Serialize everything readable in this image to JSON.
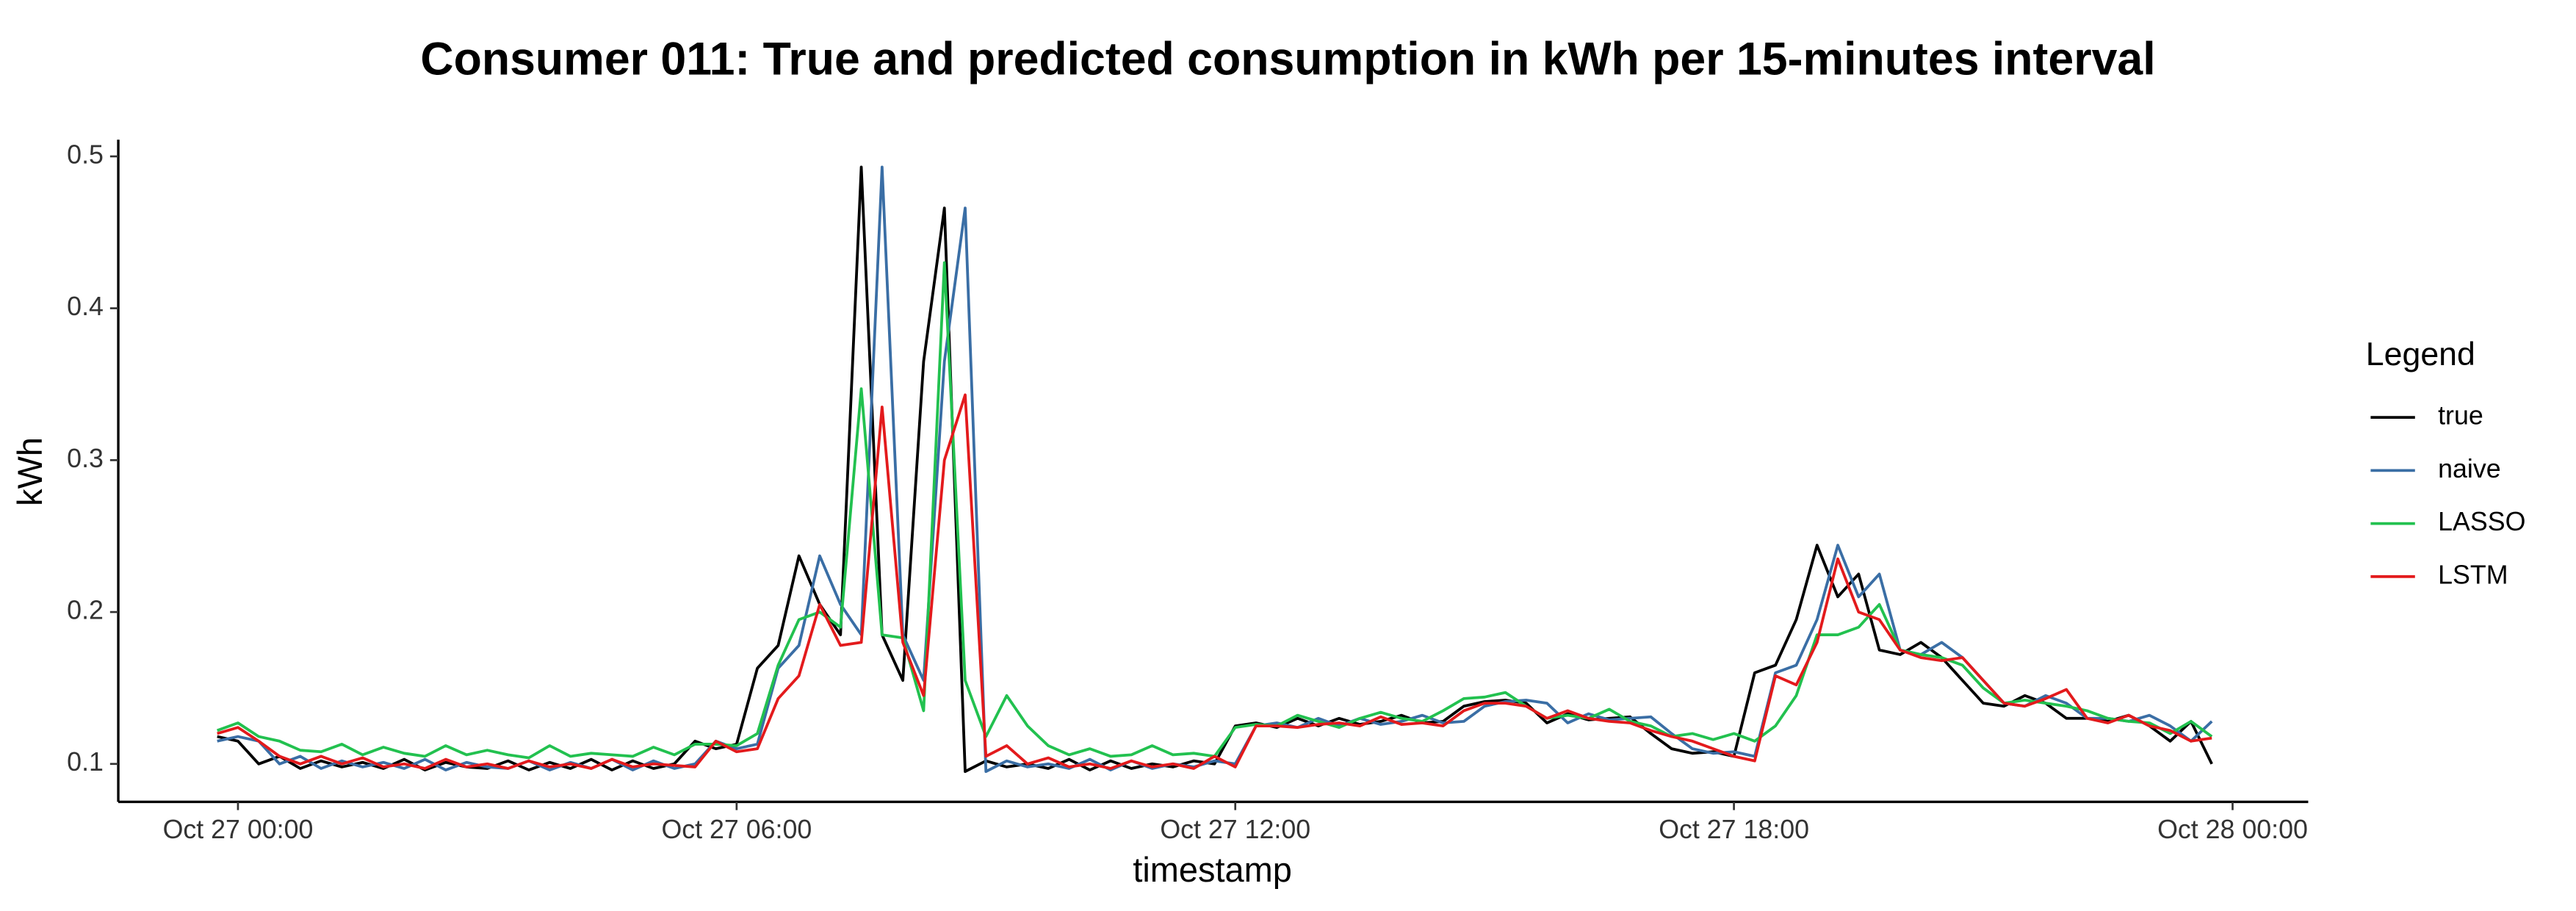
{
  "chart_data": {
    "type": "line",
    "title": "Consumer 011: True and predicted consumption in kWh per 15-minutes interval",
    "x_label": "timestamp",
    "y_label": "kWh",
    "legend_title": "Legend",
    "legend_position": "right",
    "x": [
      -0.25,
      0,
      0.25,
      0.5,
      0.75,
      1,
      1.25,
      1.5,
      1.75,
      2,
      2.25,
      2.5,
      2.75,
      3,
      3.25,
      3.5,
      3.75,
      4,
      4.25,
      4.5,
      4.75,
      5,
      5.25,
      5.5,
      5.75,
      6,
      6.25,
      6.5,
      6.75,
      7,
      7.25,
      7.5,
      7.75,
      8,
      8.25,
      8.5,
      8.75,
      9,
      9.25,
      9.5,
      9.75,
      10,
      10.25,
      10.5,
      10.75,
      11,
      11.25,
      11.5,
      11.75,
      12,
      12.25,
      12.5,
      12.75,
      13,
      13.25,
      13.5,
      13.75,
      14,
      14.25,
      14.5,
      14.75,
      15,
      15.25,
      15.5,
      15.75,
      16,
      16.25,
      16.5,
      16.75,
      17,
      17.25,
      17.5,
      17.75,
      18,
      18.25,
      18.5,
      18.75,
      19,
      19.25,
      19.5,
      19.75,
      20,
      20.25,
      20.5,
      20.75,
      21,
      21.25,
      21.5,
      21.75,
      22,
      22.25,
      22.5,
      22.75,
      23,
      23.25,
      23.5,
      23.75
    ],
    "xlim": [
      -1.44,
      24.91
    ],
    "xticks": [
      {
        "value": 0,
        "label": "Oct 27 00:00"
      },
      {
        "value": 6,
        "label": "Oct 27 06:00"
      },
      {
        "value": 12,
        "label": "Oct 27 12:00"
      },
      {
        "value": 18,
        "label": "Oct 27 18:00"
      },
      {
        "value": 24,
        "label": "Oct 28 00:00"
      }
    ],
    "ylim": [
      0.075,
      0.511
    ],
    "yticks": [
      0.1,
      0.2,
      0.3,
      0.4,
      0.5
    ],
    "grid": false,
    "series": [
      {
        "name": "true",
        "color": "#000000",
        "values": [
          0.118,
          0.115,
          0.1,
          0.105,
          0.097,
          0.102,
          0.098,
          0.101,
          0.097,
          0.103,
          0.096,
          0.101,
          0.098,
          0.097,
          0.102,
          0.096,
          0.101,
          0.097,
          0.103,
          0.096,
          0.102,
          0.097,
          0.1,
          0.115,
          0.11,
          0.113,
          0.163,
          0.178,
          0.237,
          0.205,
          0.185,
          0.493,
          0.185,
          0.155,
          0.365,
          0.466,
          0.095,
          0.102,
          0.098,
          0.1,
          0.097,
          0.103,
          0.096,
          0.102,
          0.097,
          0.1,
          0.098,
          0.102,
          0.1,
          0.125,
          0.127,
          0.124,
          0.13,
          0.125,
          0.13,
          0.126,
          0.128,
          0.132,
          0.127,
          0.128,
          0.138,
          0.141,
          0.142,
          0.14,
          0.127,
          0.133,
          0.129,
          0.13,
          0.131,
          0.12,
          0.11,
          0.107,
          0.108,
          0.105,
          0.16,
          0.165,
          0.195,
          0.244,
          0.21,
          0.225,
          0.175,
          0.172,
          0.18,
          0.17,
          0.155,
          0.14,
          0.138,
          0.145,
          0.14,
          0.13,
          0.13,
          0.128,
          0.132,
          0.125,
          0.115,
          0.128,
          0.1
        ]
      },
      {
        "name": "naive",
        "color": "#3a6ea5",
        "values": [
          0.115,
          0.118,
          0.115,
          0.1,
          0.105,
          0.097,
          0.102,
          0.098,
          0.101,
          0.097,
          0.103,
          0.096,
          0.101,
          0.098,
          0.097,
          0.102,
          0.096,
          0.101,
          0.097,
          0.103,
          0.096,
          0.102,
          0.097,
          0.1,
          0.115,
          0.11,
          0.113,
          0.163,
          0.178,
          0.237,
          0.205,
          0.185,
          0.493,
          0.185,
          0.155,
          0.365,
          0.466,
          0.095,
          0.102,
          0.098,
          0.1,
          0.097,
          0.103,
          0.096,
          0.102,
          0.097,
          0.1,
          0.098,
          0.102,
          0.1,
          0.125,
          0.127,
          0.124,
          0.13,
          0.125,
          0.13,
          0.126,
          0.128,
          0.132,
          0.127,
          0.128,
          0.138,
          0.141,
          0.142,
          0.14,
          0.127,
          0.133,
          0.129,
          0.13,
          0.131,
          0.12,
          0.11,
          0.107,
          0.108,
          0.105,
          0.16,
          0.165,
          0.195,
          0.244,
          0.21,
          0.225,
          0.175,
          0.172,
          0.18,
          0.17,
          0.155,
          0.14,
          0.138,
          0.145,
          0.14,
          0.13,
          0.13,
          0.128,
          0.132,
          0.125,
          0.115,
          0.128
        ]
      },
      {
        "name": "LASSO",
        "color": "#22c14f",
        "values": [
          0.122,
          0.127,
          0.118,
          0.115,
          0.109,
          0.108,
          0.113,
          0.106,
          0.111,
          0.107,
          0.105,
          0.112,
          0.106,
          0.109,
          0.106,
          0.104,
          0.112,
          0.105,
          0.107,
          0.106,
          0.105,
          0.111,
          0.106,
          0.113,
          0.113,
          0.112,
          0.12,
          0.165,
          0.195,
          0.2,
          0.19,
          0.347,
          0.185,
          0.183,
          0.135,
          0.43,
          0.155,
          0.118,
          0.145,
          0.125,
          0.112,
          0.106,
          0.11,
          0.105,
          0.106,
          0.112,
          0.106,
          0.107,
          0.105,
          0.124,
          0.126,
          0.125,
          0.132,
          0.128,
          0.124,
          0.13,
          0.134,
          0.13,
          0.128,
          0.135,
          0.143,
          0.144,
          0.147,
          0.138,
          0.13,
          0.132,
          0.13,
          0.136,
          0.128,
          0.125,
          0.118,
          0.12,
          0.116,
          0.12,
          0.115,
          0.125,
          0.145,
          0.185,
          0.185,
          0.19,
          0.205,
          0.175,
          0.172,
          0.17,
          0.165,
          0.15,
          0.14,
          0.142,
          0.14,
          0.138,
          0.135,
          0.13,
          0.128,
          0.127,
          0.12,
          0.128,
          0.118
        ]
      },
      {
        "name": "LSTM",
        "color": "#e31a1c",
        "values": [
          0.12,
          0.124,
          0.115,
          0.105,
          0.1,
          0.105,
          0.1,
          0.104,
          0.098,
          0.1,
          0.097,
          0.103,
          0.098,
          0.1,
          0.097,
          0.102,
          0.098,
          0.1,
          0.097,
          0.103,
          0.098,
          0.1,
          0.099,
          0.098,
          0.115,
          0.108,
          0.11,
          0.143,
          0.158,
          0.205,
          0.178,
          0.18,
          0.335,
          0.18,
          0.145,
          0.3,
          0.343,
          0.105,
          0.112,
          0.1,
          0.104,
          0.098,
          0.1,
          0.097,
          0.102,
          0.098,
          0.1,
          0.097,
          0.105,
          0.098,
          0.125,
          0.125,
          0.124,
          0.126,
          0.127,
          0.125,
          0.131,
          0.126,
          0.127,
          0.125,
          0.135,
          0.14,
          0.14,
          0.138,
          0.13,
          0.135,
          0.13,
          0.128,
          0.127,
          0.122,
          0.118,
          0.115,
          0.11,
          0.105,
          0.102,
          0.158,
          0.152,
          0.18,
          0.235,
          0.2,
          0.195,
          0.175,
          0.17,
          0.168,
          0.17,
          0.155,
          0.14,
          0.138,
          0.143,
          0.149,
          0.13,
          0.127,
          0.132,
          0.125,
          0.122,
          0.115,
          0.117
        ]
      }
    ]
  }
}
